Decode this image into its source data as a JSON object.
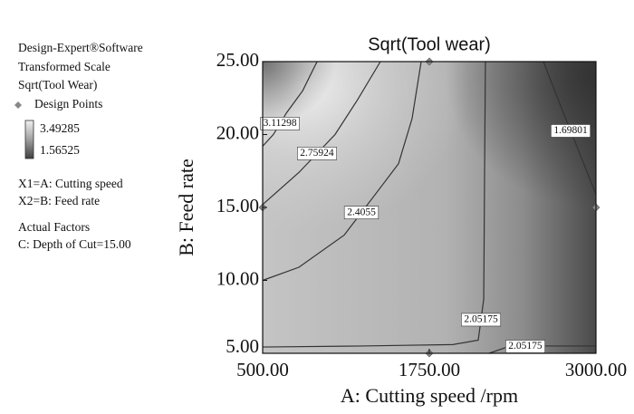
{
  "sidebar": {
    "software": "Design-Expert®Software",
    "scale": "Transformed Scale",
    "response": "Sqrt(Tool Wear)",
    "points": "Design Points",
    "color_max": 3.49285,
    "color_min": 1.56525,
    "x1": "X1=A: Cutting speed",
    "x2": "X2=B: Feed rate",
    "factors_title": "Actual Factors",
    "factor_c": "C: Depth of Cut=15.00"
  },
  "chart_data": {
    "type": "contour",
    "title": "Sqrt(Tool wear)",
    "x_label": "A: Cutting speed /rpm",
    "y_label": "B: Feed rate",
    "xlim": [
      500,
      3000
    ],
    "ylim": [
      5,
      25
    ],
    "xticks": [
      {
        "value": 500,
        "label": "500.00"
      },
      {
        "value": 1750,
        "label": "1750.00"
      },
      {
        "value": 3000,
        "label": "3000.00"
      }
    ],
    "yticks": [
      {
        "value": 5,
        "label": "5.00"
      },
      {
        "value": 10,
        "label": "10.00"
      },
      {
        "value": 15,
        "label": "15.00"
      },
      {
        "value": 20,
        "label": "20.00"
      },
      {
        "value": 25,
        "label": "25.00"
      }
    ],
    "contours": [
      {
        "level": 3.11298,
        "x": [
          908,
          800,
          680,
          580,
          500
        ],
        "y": [
          25,
          23,
          21.5,
          20,
          19.2
        ]
      },
      {
        "level": 2.75924,
        "x": [
          1383,
          1213,
          1043,
          772,
          500
        ],
        "y": [
          25,
          22.4,
          20,
          17.4,
          15.2
        ]
      },
      {
        "level": 2.4055,
        "x": [
          1689,
          1621,
          1519,
          1370,
          1111,
          772,
          500
        ],
        "y": [
          25,
          21.1,
          18,
          16.2,
          13.1,
          10.9,
          10
        ]
      },
      {
        "level": 2.05175,
        "x": [
          2171,
          2164,
          2160,
          2158,
          2117,
          1927,
          1247,
          500
        ],
        "y": [
          25,
          16.8,
          11,
          8.7,
          5.9,
          5.6,
          5.5,
          5.43
        ]
      },
      {
        "level": 2.05175,
        "x": [
          2198,
          2334,
          2606,
          3000
        ],
        "y": [
          5,
          5.43,
          5.5,
          5.5
        ]
      },
      {
        "level": 1.69801,
        "x": [
          2606,
          2742,
          2878,
          3000
        ],
        "y": [
          25,
          21.8,
          18.7,
          15.9
        ]
      }
    ],
    "line_color": "#333333",
    "points_color": "#888888",
    "design_points": {
      "x": [
        500,
        1750,
        1750,
        3000
      ],
      "y": [
        15,
        25,
        5,
        15
      ]
    }
  }
}
